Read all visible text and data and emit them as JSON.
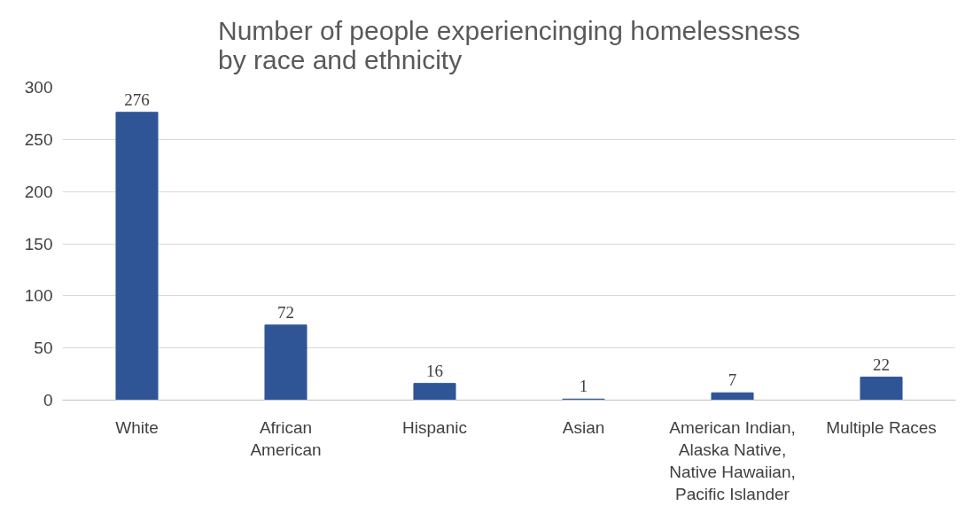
{
  "chart_data": {
    "type": "bar",
    "title": "Number of people experiencinging homelessness\nby race and ethnicity",
    "categories": [
      "White",
      "African\nAmerican",
      "Hispanic",
      "Asian",
      "American Indian,\nAlaska Native,\nNative Hawaiian,\nPacific Islander",
      "Multiple Races"
    ],
    "values": [
      276,
      72,
      16,
      1,
      7,
      22
    ],
    "color": "#2f5597",
    "ylim": [
      0,
      300
    ],
    "yticks": [
      0,
      50,
      100,
      150,
      200,
      250,
      300
    ],
    "grid": "y",
    "data_labels": true
  }
}
